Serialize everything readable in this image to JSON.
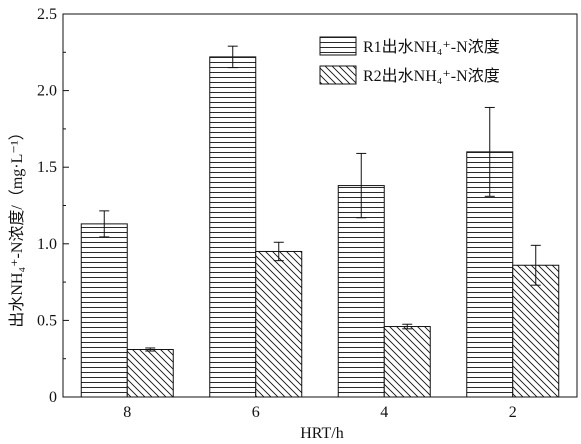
{
  "chart_data": {
    "type": "bar",
    "categories": [
      "8",
      "6",
      "4",
      "2"
    ],
    "series": [
      {
        "name": "R1出水NH₄⁺-N浓度",
        "values": [
          1.13,
          2.22,
          1.38,
          1.6
        ],
        "errors": [
          0.085,
          0.07,
          0.21,
          0.29
        ],
        "pattern": "horizontal-lines"
      },
      {
        "name": "R2出水NH₄⁺-N浓度",
        "values": [
          0.31,
          0.95,
          0.46,
          0.86
        ],
        "errors": [
          0.01,
          0.06,
          0.015,
          0.13
        ],
        "pattern": "diagonal-lines"
      }
    ],
    "xlabel": "HRT/h",
    "ylabel": "出水NH₄⁺-N浓度/（mg·L⁻¹）",
    "ylim": [
      0,
      2.5
    ],
    "yticks": [
      "0",
      "0.5",
      "1.0",
      "1.5",
      "2.0",
      "2.5"
    ],
    "legend_position": "top-right",
    "grid": false
  }
}
